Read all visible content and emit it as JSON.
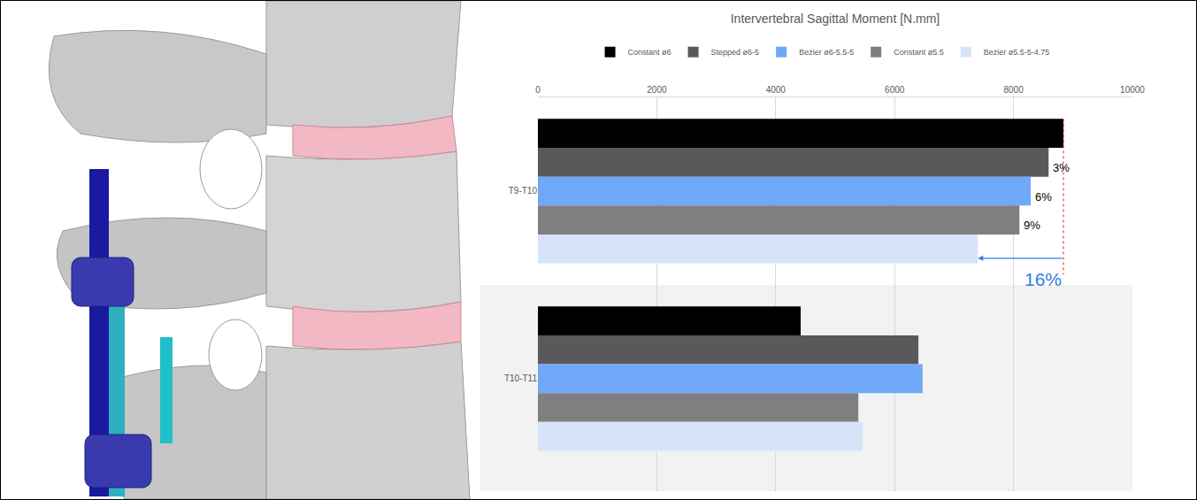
{
  "chart_data": {
    "type": "bar",
    "orientation": "horizontal",
    "title": "Intervertebral Sagittal Moment [N.mm]",
    "categories": [
      "T9-T10",
      "T10-T11"
    ],
    "series": [
      {
        "name": "Constant ø6",
        "color": "#000000",
        "values": [
          8840,
          4420
        ]
      },
      {
        "name": "Stepped ø6-5",
        "color": "#595959",
        "values": [
          8590,
          6400
        ]
      },
      {
        "name": "Bezier ø6-5.5-5",
        "color": "#6fa8f7",
        "values": [
          8290,
          6470
        ]
      },
      {
        "name": "Constant ø5.5",
        "color": "#7f7f7f",
        "values": [
          8100,
          5390
        ]
      },
      {
        "name": "Bezier ø5.5-5-4.75",
        "color": "#d6e4fa",
        "values": [
          7400,
          5460
        ]
      }
    ],
    "xlim": [
      0,
      10000
    ],
    "xticks": [
      0,
      2000,
      4000,
      6000,
      8000,
      10000
    ],
    "grid": true,
    "legend": "top",
    "annotations": [
      {
        "text": "3%",
        "category": "T9-T10",
        "series": "Stepped ø6-5"
      },
      {
        "text": "6%",
        "category": "T9-T10",
        "series": "Bezier ø6-5.5-5"
      },
      {
        "text": "9%",
        "category": "T9-T10",
        "series": "Constant ø5.5"
      },
      {
        "text": "16%",
        "category": "T9-T10",
        "series": "Bezier ø5.5-5-4.75",
        "color": "#2f7fe0"
      }
    ]
  }
}
